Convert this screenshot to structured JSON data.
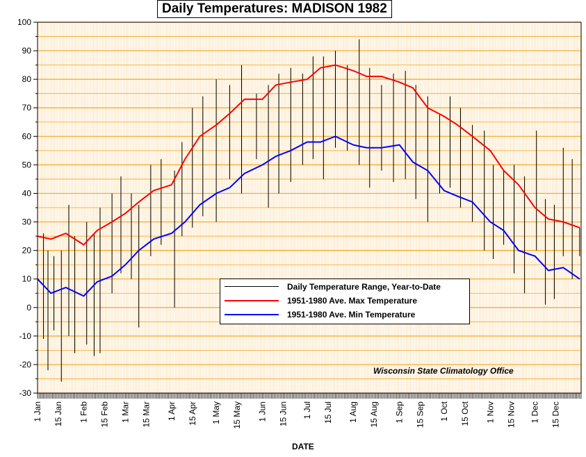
{
  "chart_data": {
    "type": "line",
    "title": "Daily Temperatures: MADISON 1982",
    "xlabel": "DATE",
    "ylabel": "",
    "ylim": [
      -30,
      100
    ],
    "yticks": [
      -30,
      -20,
      -10,
      0,
      10,
      20,
      30,
      40,
      50,
      60,
      70,
      80,
      90,
      100
    ],
    "xlim": [
      "1982-01-01",
      "1982-12-31"
    ],
    "xticks": [
      "1 Jan",
      "15 Jan",
      "1 Feb",
      "15 Feb",
      "1 Mar",
      "15 Mar",
      "1 Apr",
      "15 Apr",
      "1 May",
      "15 May",
      "1 Jun",
      "15 Jun",
      "1 Jul",
      "15 Jul",
      "1 Aug",
      "15 Aug",
      "1 Sep",
      "15 Sep",
      "1 Oct",
      "15 Oct",
      "1 Nov",
      "15 Nov",
      "1 Dec",
      "15 Dec"
    ],
    "xtick_dates": [
      "1982-01-01",
      "1982-01-15",
      "1982-02-01",
      "1982-02-15",
      "1982-03-01",
      "1982-03-15",
      "1982-04-01",
      "1982-04-15",
      "1982-05-01",
      "1982-05-15",
      "1982-06-01",
      "1982-06-15",
      "1982-07-01",
      "1982-07-15",
      "1982-08-01",
      "1982-08-15",
      "1982-09-01",
      "1982-09-15",
      "1982-10-01",
      "1982-10-15",
      "1982-11-01",
      "1982-11-15",
      "1982-12-01",
      "1982-12-15"
    ],
    "grid": true,
    "legend_position": "center-right",
    "series": [
      {
        "name": "Daily Temperature Range, Year-to-Date",
        "kind": "range-bars",
        "color": "#000000",
        "lows_sample": [
          {
            "date": "1982-01-01",
            "low": 10,
            "high": 35
          },
          {
            "date": "1982-01-05",
            "low": -11,
            "high": 26
          },
          {
            "date": "1982-01-08",
            "low": -22,
            "high": 20
          },
          {
            "date": "1982-01-12",
            "low": -8,
            "high": 18
          },
          {
            "date": "1982-01-17",
            "low": -26,
            "high": 20
          },
          {
            "date": "1982-01-22",
            "low": -10,
            "high": 36
          },
          {
            "date": "1982-01-26",
            "low": -16,
            "high": 25
          },
          {
            "date": "1982-02-03",
            "low": -13,
            "high": 30
          },
          {
            "date": "1982-02-08",
            "low": -17,
            "high": 26
          },
          {
            "date": "1982-02-12",
            "low": -16,
            "high": 35
          },
          {
            "date": "1982-02-20",
            "low": 5,
            "high": 40
          },
          {
            "date": "1982-02-26",
            "low": 12,
            "high": 46
          },
          {
            "date": "1982-03-05",
            "low": 10,
            "high": 40
          },
          {
            "date": "1982-03-10",
            "low": -7,
            "high": 36
          },
          {
            "date": "1982-03-18",
            "low": 18,
            "high": 50
          },
          {
            "date": "1982-03-25",
            "low": 22,
            "high": 52
          },
          {
            "date": "1982-04-03",
            "low": 0,
            "high": 48
          },
          {
            "date": "1982-04-08",
            "low": 25,
            "high": 58
          },
          {
            "date": "1982-04-15",
            "low": 28,
            "high": 70
          },
          {
            "date": "1982-04-22",
            "low": 32,
            "high": 74
          },
          {
            "date": "1982-05-01",
            "low": 30,
            "high": 80
          },
          {
            "date": "1982-05-10",
            "low": 45,
            "high": 78
          },
          {
            "date": "1982-05-18",
            "low": 40,
            "high": 85
          },
          {
            "date": "1982-05-28",
            "low": 52,
            "high": 75
          },
          {
            "date": "1982-06-05",
            "low": 35,
            "high": 78
          },
          {
            "date": "1982-06-12",
            "low": 40,
            "high": 82
          },
          {
            "date": "1982-06-20",
            "low": 44,
            "high": 84
          },
          {
            "date": "1982-06-28",
            "low": 50,
            "high": 82
          },
          {
            "date": "1982-07-05",
            "low": 52,
            "high": 88
          },
          {
            "date": "1982-07-12",
            "low": 45,
            "high": 88
          },
          {
            "date": "1982-07-20",
            "low": 56,
            "high": 90
          },
          {
            "date": "1982-07-28",
            "low": 55,
            "high": 85
          },
          {
            "date": "1982-08-05",
            "low": 50,
            "high": 94
          },
          {
            "date": "1982-08-12",
            "low": 42,
            "high": 84
          },
          {
            "date": "1982-08-20",
            "low": 48,
            "high": 78
          },
          {
            "date": "1982-08-28",
            "low": 44,
            "high": 82
          },
          {
            "date": "1982-09-05",
            "low": 45,
            "high": 83
          },
          {
            "date": "1982-09-12",
            "low": 38,
            "high": 78
          },
          {
            "date": "1982-09-20",
            "low": 30,
            "high": 74
          },
          {
            "date": "1982-09-28",
            "low": 40,
            "high": 68
          },
          {
            "date": "1982-10-05",
            "low": 42,
            "high": 74
          },
          {
            "date": "1982-10-12",
            "low": 35,
            "high": 70
          },
          {
            "date": "1982-10-20",
            "low": 30,
            "high": 64
          },
          {
            "date": "1982-10-28",
            "low": 20,
            "high": 62
          },
          {
            "date": "1982-11-03",
            "low": 17,
            "high": 50
          },
          {
            "date": "1982-11-10",
            "low": 22,
            "high": 48
          },
          {
            "date": "1982-11-17",
            "low": 12,
            "high": 50
          },
          {
            "date": "1982-11-24",
            "low": 5,
            "high": 46
          },
          {
            "date": "1982-12-02",
            "low": 20,
            "high": 62
          },
          {
            "date": "1982-12-08",
            "low": 1,
            "high": 38
          },
          {
            "date": "1982-12-14",
            "low": 3,
            "high": 36
          },
          {
            "date": "1982-12-20",
            "low": 18,
            "high": 56
          },
          {
            "date": "1982-12-26",
            "low": 10,
            "high": 52
          },
          {
            "date": "1982-12-31",
            "low": 18,
            "high": 28
          }
        ]
      },
      {
        "name": "1951-1980 Ave. Max Temperature",
        "kind": "line",
        "color": "#ff0000",
        "points": [
          {
            "date": "1982-01-01",
            "value": 25
          },
          {
            "date": "1982-01-10",
            "value": 24
          },
          {
            "date": "1982-01-20",
            "value": 26
          },
          {
            "date": "1982-02-01",
            "value": 22
          },
          {
            "date": "1982-02-10",
            "value": 27
          },
          {
            "date": "1982-02-20",
            "value": 30
          },
          {
            "date": "1982-03-01",
            "value": 33
          },
          {
            "date": "1982-03-10",
            "value": 37
          },
          {
            "date": "1982-03-20",
            "value": 41
          },
          {
            "date": "1982-04-01",
            "value": 43
          },
          {
            "date": "1982-04-10",
            "value": 52
          },
          {
            "date": "1982-04-20",
            "value": 60
          },
          {
            "date": "1982-05-01",
            "value": 64
          },
          {
            "date": "1982-05-10",
            "value": 68
          },
          {
            "date": "1982-05-20",
            "value": 73
          },
          {
            "date": "1982-06-01",
            "value": 73
          },
          {
            "date": "1982-06-10",
            "value": 78
          },
          {
            "date": "1982-06-20",
            "value": 79
          },
          {
            "date": "1982-07-01",
            "value": 80
          },
          {
            "date": "1982-07-10",
            "value": 84
          },
          {
            "date": "1982-07-20",
            "value": 85
          },
          {
            "date": "1982-08-01",
            "value": 83
          },
          {
            "date": "1982-08-10",
            "value": 81
          },
          {
            "date": "1982-08-20",
            "value": 81
          },
          {
            "date": "1982-09-01",
            "value": 79
          },
          {
            "date": "1982-09-10",
            "value": 77
          },
          {
            "date": "1982-09-20",
            "value": 70
          },
          {
            "date": "1982-10-01",
            "value": 67
          },
          {
            "date": "1982-10-10",
            "value": 64
          },
          {
            "date": "1982-10-20",
            "value": 60
          },
          {
            "date": "1982-11-01",
            "value": 55
          },
          {
            "date": "1982-11-10",
            "value": 48
          },
          {
            "date": "1982-11-20",
            "value": 43
          },
          {
            "date": "1982-12-01",
            "value": 35
          },
          {
            "date": "1982-12-10",
            "value": 31
          },
          {
            "date": "1982-12-20",
            "value": 30
          },
          {
            "date": "1982-12-31",
            "value": 28
          }
        ]
      },
      {
        "name": "1951-1980 Ave. Min Temperature",
        "kind": "line",
        "color": "#0000ff",
        "points": [
          {
            "date": "1982-01-01",
            "value": 10
          },
          {
            "date": "1982-01-10",
            "value": 5
          },
          {
            "date": "1982-01-20",
            "value": 7
          },
          {
            "date": "1982-02-01",
            "value": 4
          },
          {
            "date": "1982-02-10",
            "value": 9
          },
          {
            "date": "1982-02-20",
            "value": 11
          },
          {
            "date": "1982-03-01",
            "value": 15
          },
          {
            "date": "1982-03-10",
            "value": 20
          },
          {
            "date": "1982-03-20",
            "value": 24
          },
          {
            "date": "1982-04-01",
            "value": 26
          },
          {
            "date": "1982-04-10",
            "value": 30
          },
          {
            "date": "1982-04-20",
            "value": 36
          },
          {
            "date": "1982-05-01",
            "value": 40
          },
          {
            "date": "1982-05-10",
            "value": 42
          },
          {
            "date": "1982-05-20",
            "value": 47
          },
          {
            "date": "1982-06-01",
            "value": 50
          },
          {
            "date": "1982-06-10",
            "value": 53
          },
          {
            "date": "1982-06-20",
            "value": 55
          },
          {
            "date": "1982-07-01",
            "value": 58
          },
          {
            "date": "1982-07-10",
            "value": 58
          },
          {
            "date": "1982-07-20",
            "value": 60
          },
          {
            "date": "1982-08-01",
            "value": 57
          },
          {
            "date": "1982-08-10",
            "value": 56
          },
          {
            "date": "1982-08-20",
            "value": 56
          },
          {
            "date": "1982-09-01",
            "value": 57
          },
          {
            "date": "1982-09-10",
            "value": 51
          },
          {
            "date": "1982-09-20",
            "value": 48
          },
          {
            "date": "1982-10-01",
            "value": 41
          },
          {
            "date": "1982-10-10",
            "value": 39
          },
          {
            "date": "1982-10-20",
            "value": 37
          },
          {
            "date": "1982-11-01",
            "value": 30
          },
          {
            "date": "1982-11-10",
            "value": 27
          },
          {
            "date": "1982-11-20",
            "value": 20
          },
          {
            "date": "1982-12-01",
            "value": 18
          },
          {
            "date": "1982-12-10",
            "value": 13
          },
          {
            "date": "1982-12-20",
            "value": 14
          },
          {
            "date": "1982-12-31",
            "value": 10
          }
        ]
      }
    ],
    "annotation": "Wisconsin State Climatology Office",
    "colors": {
      "grid": "#f5a623",
      "background": "#ffffff"
    }
  }
}
